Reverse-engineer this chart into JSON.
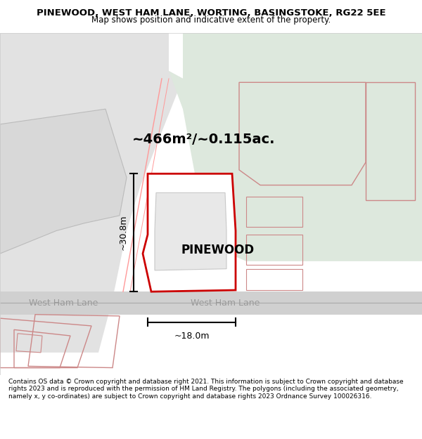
{
  "title": "PINEWOOD, WEST HAM LANE, WORTING, BASINGSTOKE, RG22 5EE",
  "subtitle": "Map shows position and indicative extent of the property.",
  "footer": "Contains OS data © Crown copyright and database right 2021. This information is subject to Crown copyright and database rights 2023 and is reproduced with the permission of HM Land Registry. The polygons (including the associated geometry, namely x, y co-ordinates) are subject to Crown copyright and database rights 2023 Ordnance Survey 100026316.",
  "area_label": "~466m²/~0.115ac.",
  "property_label": "PINEWOOD",
  "dim_vertical": "~30.8m",
  "dim_horizontal": "~18.0m",
  "road_label_left": "West Ham Lane",
  "road_label_right": "West Ham Lane",
  "bg_color": "#ffffff",
  "map_bg_left": "#e8e8e8",
  "map_bg_right": "#dde8dd",
  "road_color": "#d8d8d8",
  "main_plot_color": "#cc0000",
  "neighbor_plot_color": "#cc0000",
  "plot_fill": "#ffffff"
}
